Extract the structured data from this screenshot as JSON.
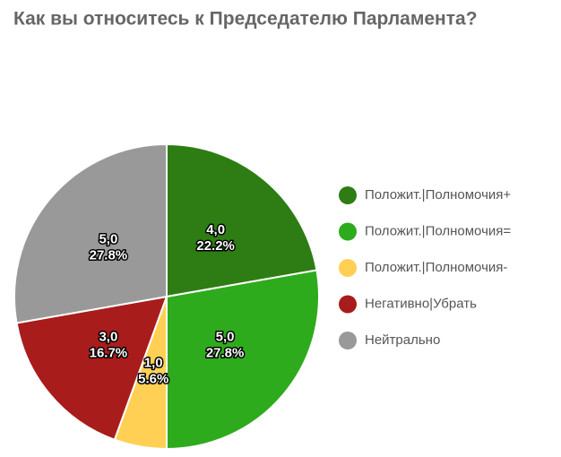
{
  "chart_data": {
    "type": "pie",
    "title": "Как вы относитесь к Председателю Парламента?",
    "categories": [
      "Положит.|Полномочия+",
      "Положит.|Полномочия=",
      "Положит.|Полномочия-",
      "Негативно|Убрать",
      "Нейтрально"
    ],
    "values": [
      4,
      5,
      1,
      3,
      5
    ],
    "value_labels": [
      "4,0",
      "5,0",
      "1,0",
      "3,0",
      "5,0"
    ],
    "percentages": [
      22.2,
      27.8,
      5.6,
      16.7,
      27.8
    ],
    "percentage_labels": [
      "22.2%",
      "27.8%",
      "5.6%",
      "16.7%",
      "27.8%"
    ],
    "colors": [
      "#2e7d14",
      "#2eab1c",
      "#ffd054",
      "#a91c1c",
      "#999999"
    ],
    "legend": "right"
  }
}
